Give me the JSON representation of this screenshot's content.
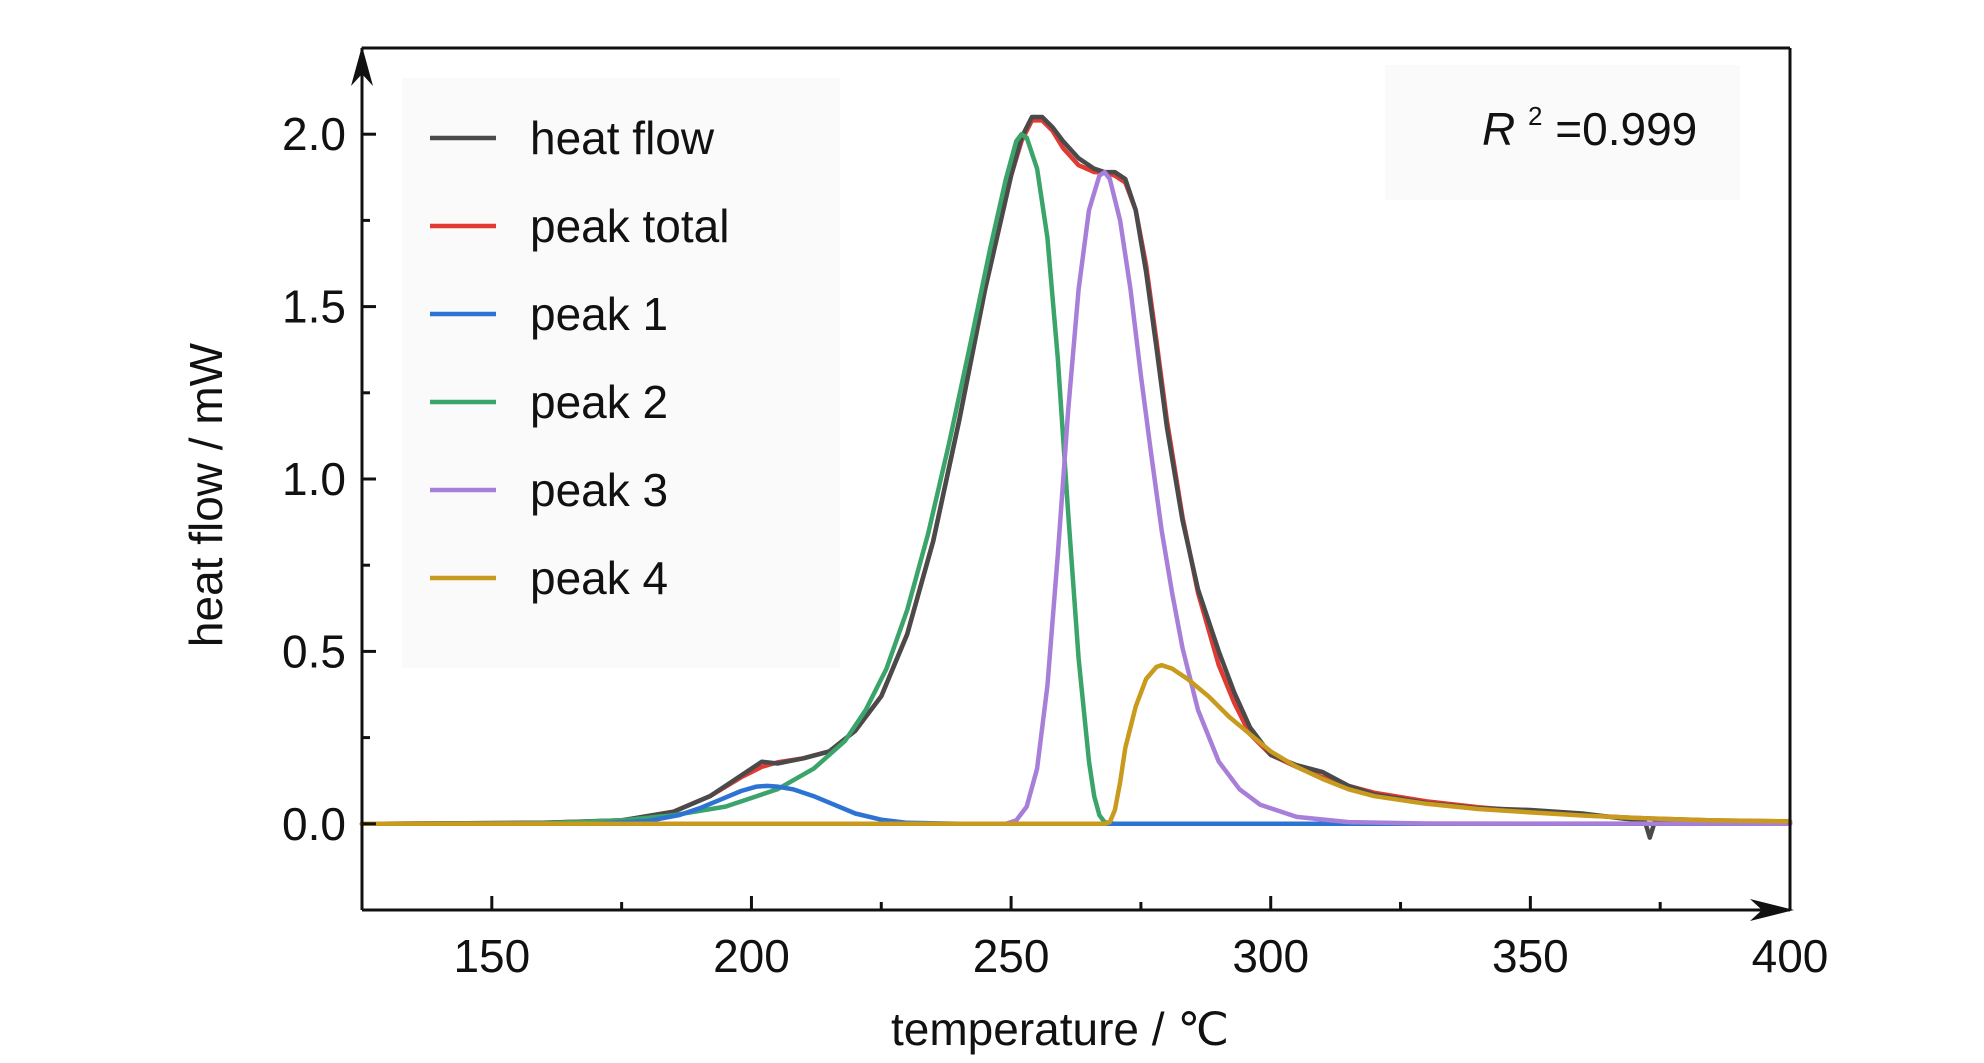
{
  "chart_data": {
    "type": "line",
    "xlabel": "temperature / ℃",
    "ylabel": "heat flow / mW",
    "xlim": [
      125,
      400
    ],
    "ylim": [
      -0.25,
      2.25
    ],
    "xticks": [
      150,
      200,
      250,
      300,
      350,
      400
    ],
    "xtick_labels": [
      "150",
      "200",
      "250",
      "300",
      "350",
      "400"
    ],
    "yticks": [
      0.0,
      0.5,
      1.0,
      1.5,
      2.0
    ],
    "ytick_labels": [
      "0.0",
      "0.5",
      "1.0",
      "1.5",
      "2.0"
    ],
    "grid": false,
    "legend_position": "top-left",
    "annotation": {
      "r_symbol": "R",
      "r_superscript": "2",
      "r_value": "=0.999"
    },
    "series": [
      {
        "name": "heat flow",
        "color": "#4a4a4a",
        "points": [
          [
            125,
            0
          ],
          [
            160,
            0.003
          ],
          [
            175,
            0.01
          ],
          [
            185,
            0.035
          ],
          [
            192,
            0.08
          ],
          [
            198,
            0.14
          ],
          [
            202,
            0.18
          ],
          [
            205,
            0.175
          ],
          [
            210,
            0.19
          ],
          [
            215,
            0.21
          ],
          [
            220,
            0.27
          ],
          [
            225,
            0.37
          ],
          [
            230,
            0.55
          ],
          [
            235,
            0.82
          ],
          [
            240,
            1.17
          ],
          [
            245,
            1.55
          ],
          [
            250,
            1.88
          ],
          [
            252,
            1.99
          ],
          [
            254,
            2.05
          ],
          [
            256,
            2.05
          ],
          [
            258,
            2.02
          ],
          [
            260,
            1.98
          ],
          [
            263,
            1.93
          ],
          [
            266,
            1.9
          ],
          [
            268,
            1.89
          ],
          [
            270,
            1.89
          ],
          [
            272,
            1.87
          ],
          [
            274,
            1.78
          ],
          [
            276,
            1.6
          ],
          [
            278,
            1.38
          ],
          [
            280,
            1.15
          ],
          [
            283,
            0.88
          ],
          [
            286,
            0.68
          ],
          [
            290,
            0.5
          ],
          [
            293,
            0.38
          ],
          [
            296,
            0.28
          ],
          [
            300,
            0.2
          ],
          [
            305,
            0.17
          ],
          [
            310,
            0.15
          ],
          [
            315,
            0.11
          ],
          [
            320,
            0.085
          ],
          [
            330,
            0.06
          ],
          [
            340,
            0.045
          ],
          [
            350,
            0.04
          ],
          [
            360,
            0.03
          ],
          [
            368,
            0.015
          ],
          [
            372,
            0.01
          ],
          [
            373,
            -0.04
          ],
          [
            374,
            0.008
          ],
          [
            385,
            0.005
          ],
          [
            400,
            0.004
          ]
        ]
      },
      {
        "name": "peak total",
        "color": "#e03a33",
        "points": [
          [
            125,
            0
          ],
          [
            160,
            0.003
          ],
          [
            175,
            0.01
          ],
          [
            185,
            0.035
          ],
          [
            192,
            0.08
          ],
          [
            198,
            0.135
          ],
          [
            202,
            0.165
          ],
          [
            205,
            0.178
          ],
          [
            210,
            0.19
          ],
          [
            215,
            0.21
          ],
          [
            220,
            0.27
          ],
          [
            225,
            0.37
          ],
          [
            230,
            0.55
          ],
          [
            235,
            0.82
          ],
          [
            240,
            1.17
          ],
          [
            245,
            1.55
          ],
          [
            250,
            1.88
          ],
          [
            252,
            1.98
          ],
          [
            254,
            2.04
          ],
          [
            256,
            2.04
          ],
          [
            258,
            2.01
          ],
          [
            260,
            1.96
          ],
          [
            263,
            1.91
          ],
          [
            266,
            1.89
          ],
          [
            268,
            1.89
          ],
          [
            270,
            1.88
          ],
          [
            272,
            1.86
          ],
          [
            274,
            1.78
          ],
          [
            276,
            1.62
          ],
          [
            278,
            1.4
          ],
          [
            280,
            1.17
          ],
          [
            283,
            0.89
          ],
          [
            286,
            0.67
          ],
          [
            290,
            0.46
          ],
          [
            293,
            0.35
          ],
          [
            296,
            0.26
          ],
          [
            300,
            0.2
          ],
          [
            305,
            0.165
          ],
          [
            310,
            0.135
          ],
          [
            315,
            0.11
          ],
          [
            320,
            0.09
          ],
          [
            330,
            0.065
          ],
          [
            340,
            0.048
          ],
          [
            350,
            0.036
          ],
          [
            360,
            0.025
          ],
          [
            370,
            0.017
          ],
          [
            385,
            0.01
          ],
          [
            400,
            0.007
          ]
        ]
      },
      {
        "name": "peak 1",
        "color": "#2d73d4",
        "points": [
          [
            125,
            0
          ],
          [
            170,
            0.0
          ],
          [
            180,
            0.008
          ],
          [
            186,
            0.025
          ],
          [
            190,
            0.045
          ],
          [
            194,
            0.07
          ],
          [
            198,
            0.095
          ],
          [
            201,
            0.108
          ],
          [
            203,
            0.11
          ],
          [
            205,
            0.108
          ],
          [
            208,
            0.1
          ],
          [
            212,
            0.08
          ],
          [
            216,
            0.055
          ],
          [
            220,
            0.03
          ],
          [
            225,
            0.012
          ],
          [
            230,
            0.003
          ],
          [
            240,
            0
          ],
          [
            400,
            0
          ]
        ]
      },
      {
        "name": "peak 2",
        "color": "#3aa46a",
        "points": [
          [
            125,
            0
          ],
          [
            160,
            0.002
          ],
          [
            175,
            0.01
          ],
          [
            185,
            0.025
          ],
          [
            195,
            0.05
          ],
          [
            205,
            0.1
          ],
          [
            212,
            0.16
          ],
          [
            218,
            0.24
          ],
          [
            222,
            0.33
          ],
          [
            226,
            0.45
          ],
          [
            230,
            0.62
          ],
          [
            234,
            0.84
          ],
          [
            238,
            1.1
          ],
          [
            242,
            1.38
          ],
          [
            246,
            1.67
          ],
          [
            249,
            1.87
          ],
          [
            251,
            1.98
          ],
          [
            252,
            2.0
          ],
          [
            253,
            1.99
          ],
          [
            255,
            1.9
          ],
          [
            257,
            1.7
          ],
          [
            259,
            1.35
          ],
          [
            261,
            0.9
          ],
          [
            263,
            0.48
          ],
          [
            265,
            0.18
          ],
          [
            266,
            0.08
          ],
          [
            267,
            0.025
          ],
          [
            268,
            0.005
          ],
          [
            270,
            0
          ],
          [
            400,
            0
          ]
        ]
      },
      {
        "name": "peak 3",
        "color": "#a87fd8",
        "points": [
          [
            125,
            0
          ],
          [
            249,
            0
          ],
          [
            251,
            0.01
          ],
          [
            253,
            0.05
          ],
          [
            255,
            0.16
          ],
          [
            257,
            0.4
          ],
          [
            259,
            0.78
          ],
          [
            261,
            1.2
          ],
          [
            263,
            1.55
          ],
          [
            265,
            1.78
          ],
          [
            267,
            1.88
          ],
          [
            268,
            1.89
          ],
          [
            269,
            1.87
          ],
          [
            271,
            1.75
          ],
          [
            273,
            1.55
          ],
          [
            275,
            1.3
          ],
          [
            277,
            1.07
          ],
          [
            279,
            0.85
          ],
          [
            281,
            0.67
          ],
          [
            283,
            0.51
          ],
          [
            286,
            0.33
          ],
          [
            290,
            0.18
          ],
          [
            294,
            0.1
          ],
          [
            298,
            0.055
          ],
          [
            305,
            0.02
          ],
          [
            315,
            0.005
          ],
          [
            330,
            0.001
          ],
          [
            400,
            0
          ]
        ]
      },
      {
        "name": "peak 4",
        "color": "#c89a1e",
        "points": [
          [
            125,
            0
          ],
          [
            268,
            0
          ],
          [
            269,
            0.005
          ],
          [
            270,
            0.04
          ],
          [
            271,
            0.12
          ],
          [
            272,
            0.22
          ],
          [
            274,
            0.34
          ],
          [
            276,
            0.42
          ],
          [
            278,
            0.455
          ],
          [
            279,
            0.46
          ],
          [
            281,
            0.45
          ],
          [
            284,
            0.42
          ],
          [
            288,
            0.37
          ],
          [
            292,
            0.31
          ],
          [
            296,
            0.26
          ],
          [
            300,
            0.21
          ],
          [
            305,
            0.165
          ],
          [
            310,
            0.13
          ],
          [
            315,
            0.1
          ],
          [
            320,
            0.08
          ],
          [
            330,
            0.058
          ],
          [
            340,
            0.043
          ],
          [
            350,
            0.033
          ],
          [
            360,
            0.024
          ],
          [
            370,
            0.017
          ],
          [
            385,
            0.01
          ],
          [
            400,
            0.007
          ]
        ]
      }
    ]
  }
}
